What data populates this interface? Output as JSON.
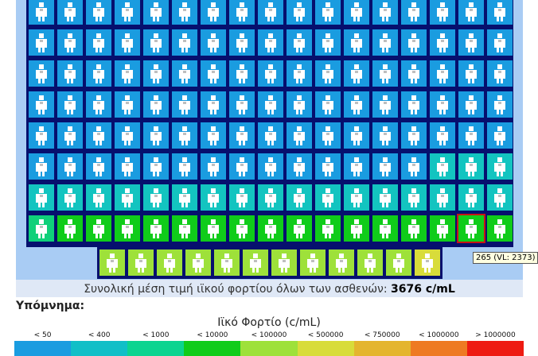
{
  "summary": {
    "label": "Συνολική μέση τιμή ιϊκού φορτίου όλων των ασθενών:",
    "value": "3676 c/mL"
  },
  "legend": {
    "title": "Υπόμνημα:",
    "caption": "Ιϊκό Φορτίο (c/mL)",
    "items": [
      {
        "label": "< 50",
        "color": "#1a9ce0"
      },
      {
        "label": "< 400",
        "color": "#11bfc7"
      },
      {
        "label": "< 1000",
        "color": "#0cd490"
      },
      {
        "label": "< 10000",
        "color": "#10cc1a"
      },
      {
        "label": "< 100000",
        "color": "#9ee13a"
      },
      {
        "label": "< 500000",
        "color": "#d8dc3a"
      },
      {
        "label": "< 750000",
        "color": "#e4b52e"
      },
      {
        "label": "< 1000000",
        "color": "#ee7a22"
      },
      {
        "label": "> 1000000",
        "color": "#ee1a12"
      }
    ]
  },
  "tooltip": "265 (VL: 2373)",
  "grid": {
    "rows": [
      "bbbbbbbbbbbbbbbbb",
      "bbbbbbbbbbbbbbbbb",
      "bbbbbbbbbbbbbbbbb",
      "bbbbbbbbbbbbbbbbb",
      "bbbbbbbbbbbbbbbbb",
      "bbbbbbbbbbbbbbttt",
      "ttttttttttttttttt",
      "mgggggggggggggggg"
    ],
    "last_row": "llllllllllly",
    "selected": {
      "row": 7,
      "col": 15
    },
    "colors": {
      "b": "#1a9ce0",
      "t": "#13c4c0",
      "m": "#0fd07a",
      "g": "#10cc1a",
      "l": "#9ee13a",
      "y": "#d8dc3a"
    }
  }
}
